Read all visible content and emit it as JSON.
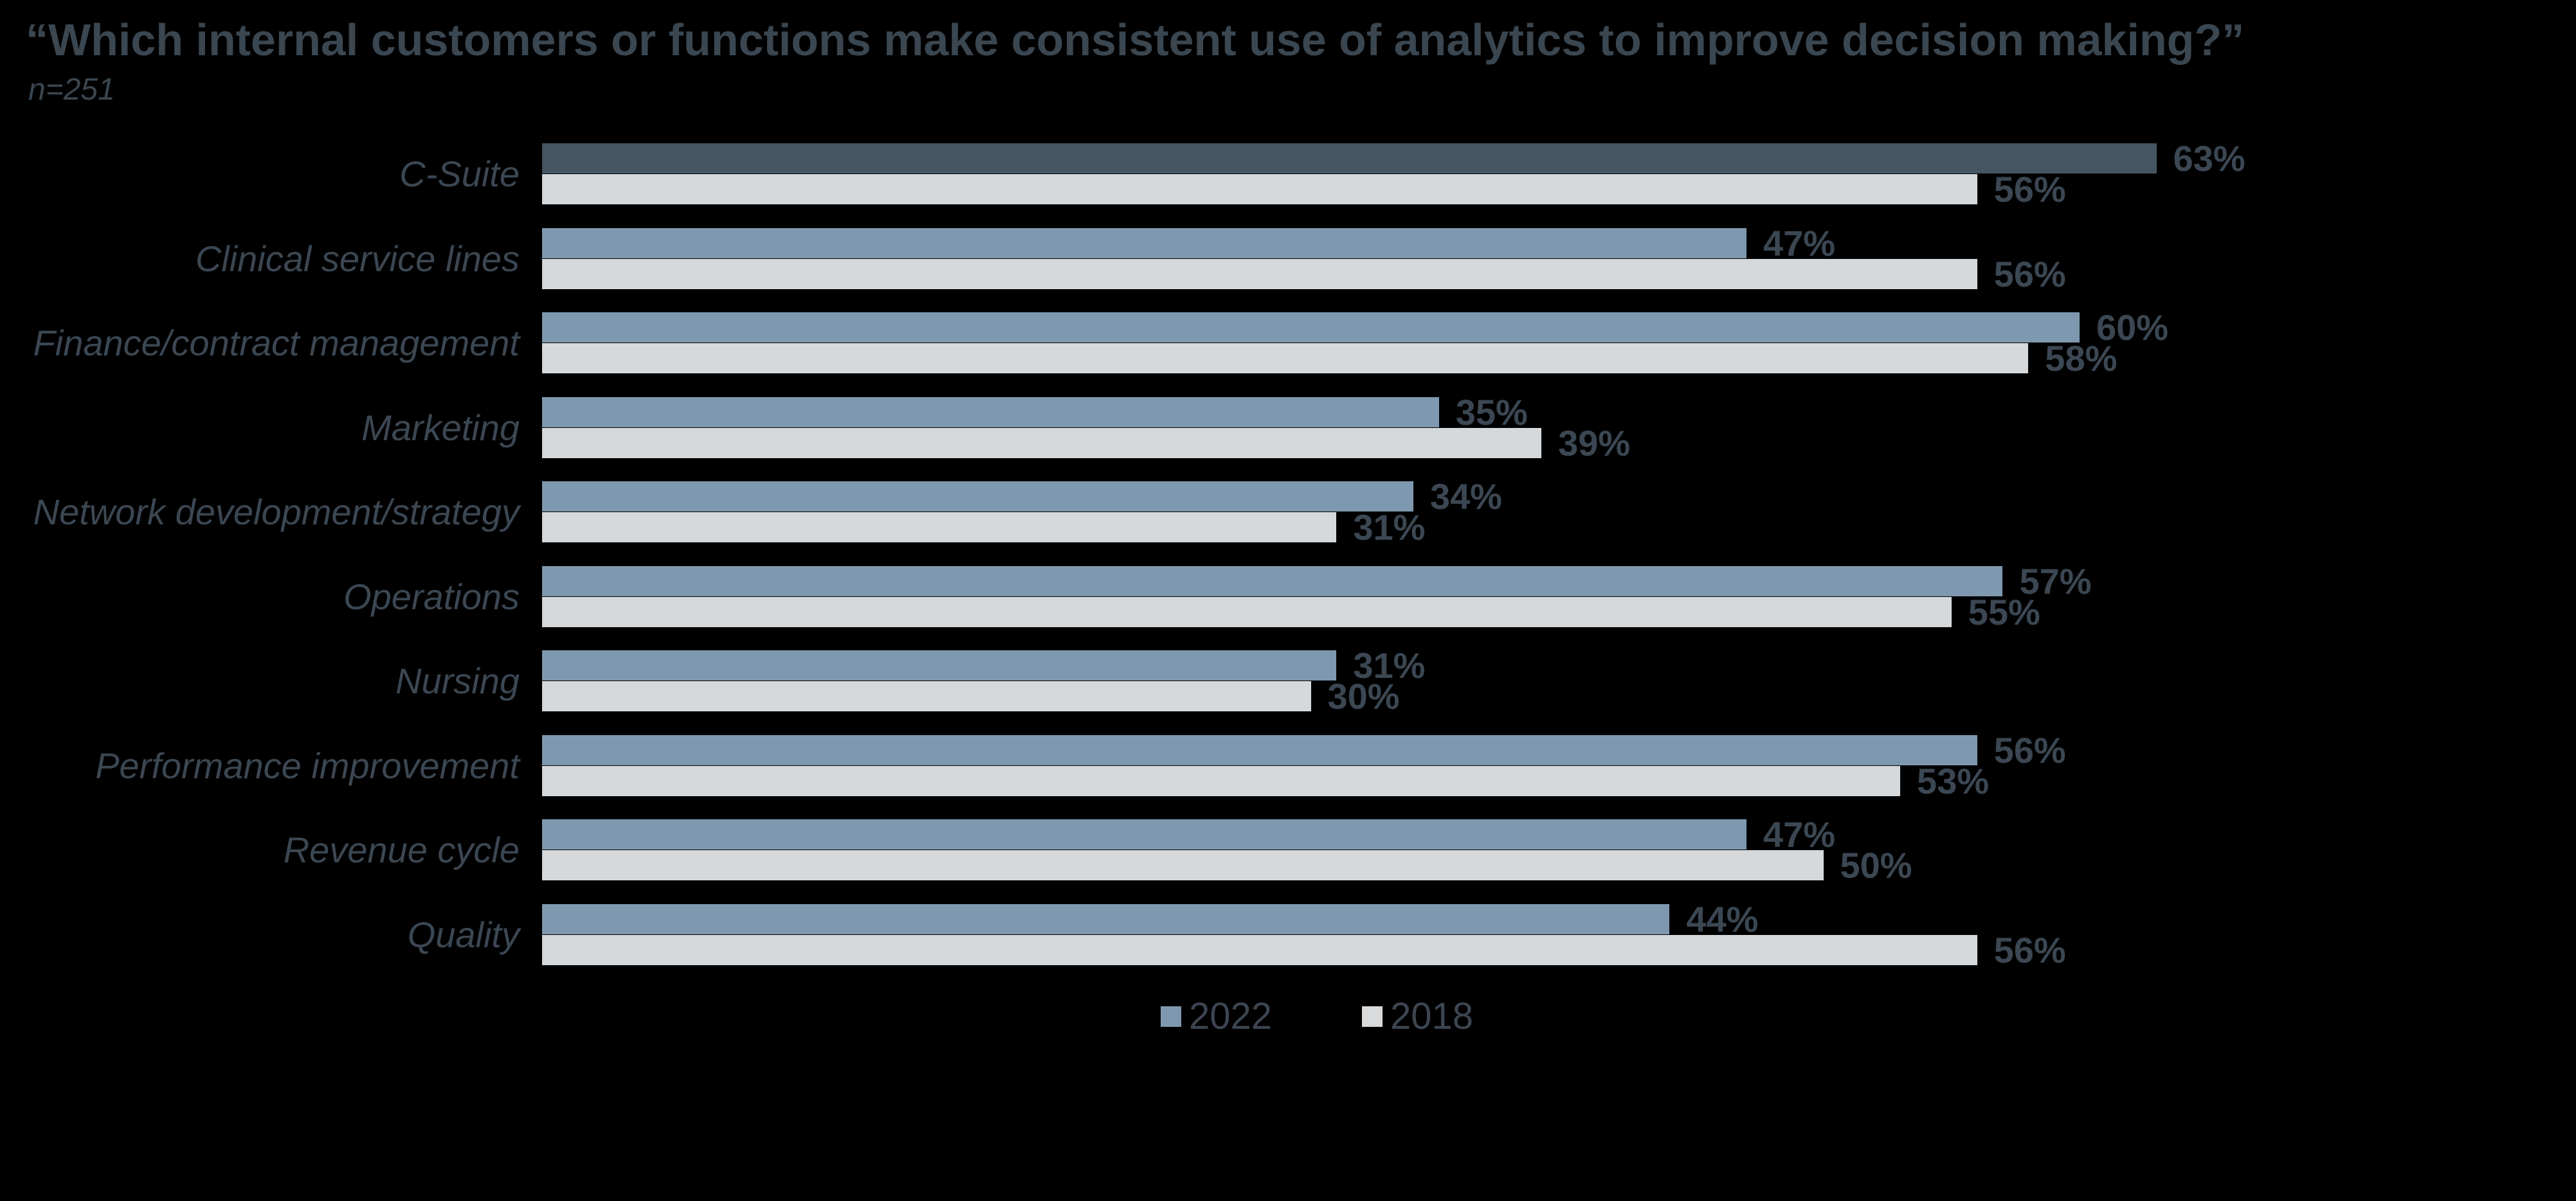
{
  "page": {
    "background": "#000000"
  },
  "header": {
    "title": "“Which internal customers or functions make consistent use of analytics to improve decision making?”",
    "sample_note": "n=251"
  },
  "legend": {
    "items": [
      {
        "label": "2022",
        "swatch_color": "#7E99AF"
      },
      {
        "label": "2018",
        "swatch_color": "#D8DADB"
      }
    ]
  },
  "chart_data": {
    "type": "bar",
    "orientation": "horizontal",
    "title": "“Which internal customers or functions make consistent use of analytics to improve decision making?”",
    "subtitle": "n=251",
    "categories": [
      "C-Suite",
      "Clinical service lines",
      "Finance/contract management",
      "Marketing",
      "Network development/strategy",
      "Operations",
      "Nursing",
      "Performance improvement",
      "Revenue cycle",
      "Quality"
    ],
    "series": [
      {
        "name": "2022",
        "color": "#7E99AF",
        "values": [
          63,
          47,
          60,
          35,
          34,
          57,
          31,
          56,
          47,
          44
        ]
      },
      {
        "name": "2018",
        "color": "#D6D9DB",
        "values": [
          56,
          56,
          58,
          39,
          31,
          55,
          30,
          53,
          50,
          56
        ]
      }
    ],
    "highlights": [
      {
        "category": "C-Suite",
        "series": "2022",
        "color": "#455562"
      }
    ],
    "value_suffix": "%",
    "value_label_color": "#3B4752",
    "xlim": [
      0,
      100
    ],
    "grid": false,
    "legend_position": "bottom"
  }
}
